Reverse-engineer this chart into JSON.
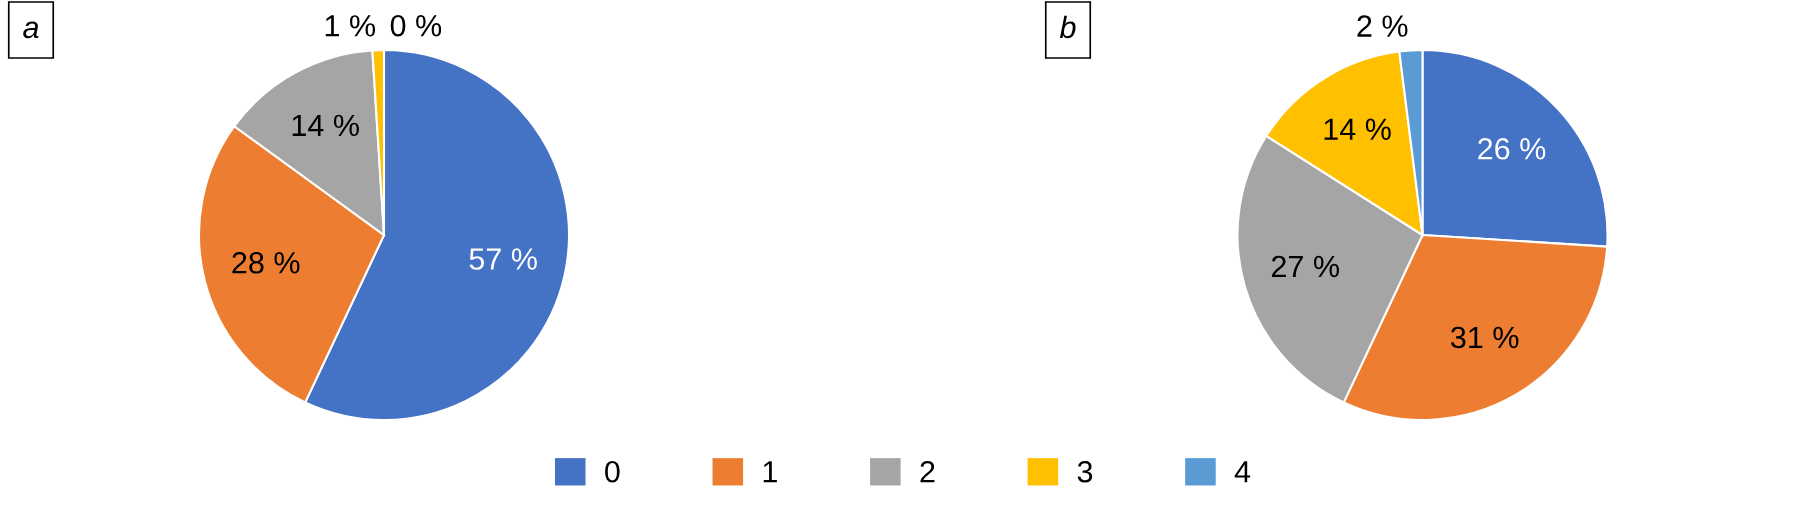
{
  "chart_data": [
    {
      "type": "pie",
      "title": "a",
      "categories": [
        "0",
        "1",
        "2",
        "3",
        "4"
      ],
      "values": [
        57,
        28,
        14,
        1,
        0
      ],
      "colors": [
        "#4472c4",
        "#ed7d31",
        "#a5a5a5",
        "#ffc000",
        "#5b9bd5"
      ],
      "value_labels": [
        "57 %",
        "28 %",
        "14 %",
        "1 %",
        "0 %"
      ],
      "legend": "bottom"
    },
    {
      "type": "pie",
      "title": "b",
      "categories": [
        null,
        null,
        null,
        null,
        null
      ],
      "values": [
        26,
        31,
        27,
        14,
        2
      ],
      "colors": [
        "#4472c4",
        "#ed7d31",
        "#a5a5a5",
        "#ffc000",
        "#5b9bd5"
      ],
      "value_labels": [
        "26 %",
        "31 %",
        "27 %",
        "14 %",
        "2 %"
      ]
    }
  ]
}
